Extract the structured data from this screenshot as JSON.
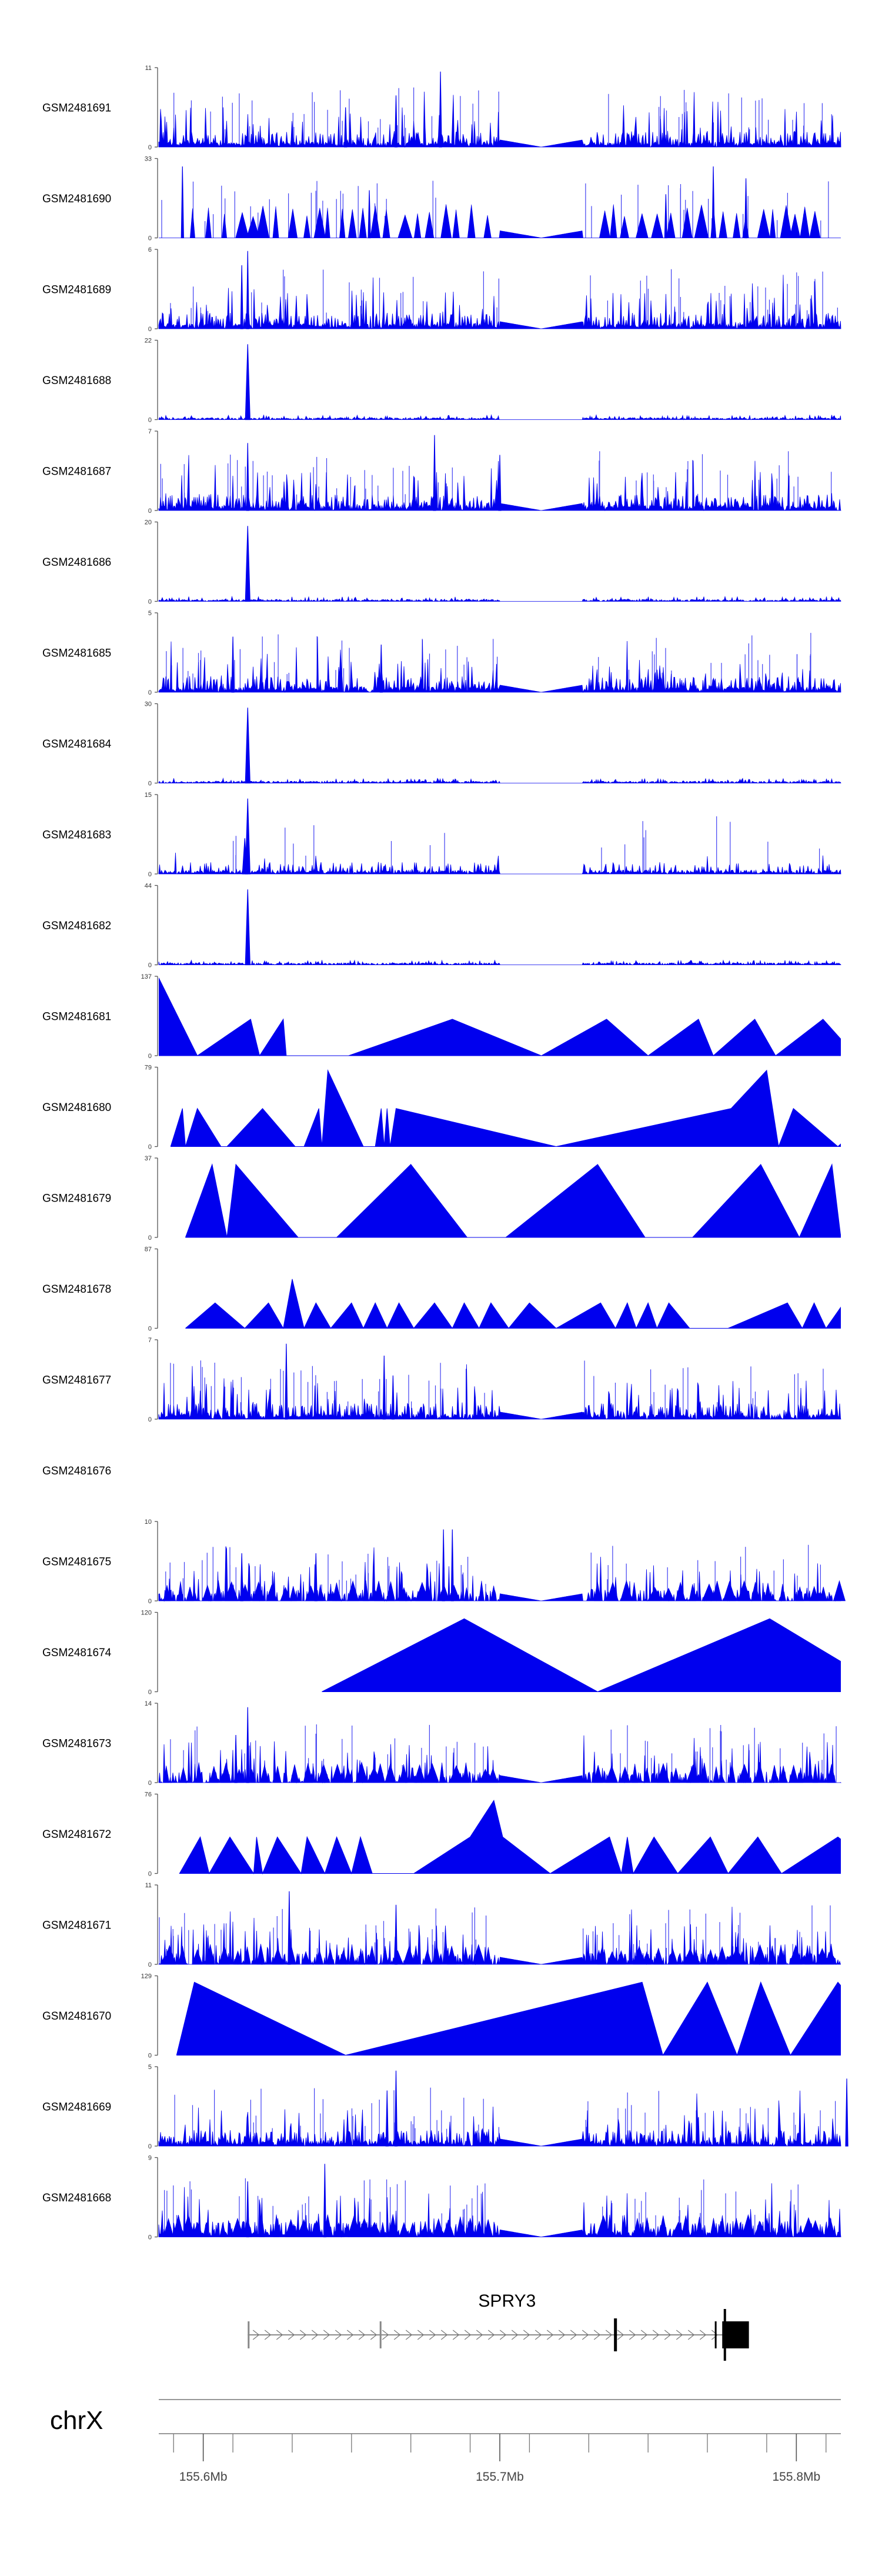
{
  "colors": {
    "track": "#0000ee",
    "axis": "#555555",
    "gene": "#000000",
    "text": "#000000"
  },
  "chart_data": {
    "type": "area",
    "title": "",
    "xlabel": "",
    "ylabel": "",
    "chromosome": "chrX",
    "xlim": [
      155.585,
      155.815
    ],
    "x_ticks": [
      155.6,
      155.7,
      155.8
    ],
    "x_tick_labels": [
      "155.6Mb",
      "155.7Mb",
      "155.8Mb"
    ],
    "gene": {
      "name": "SPRY3",
      "start": 155.615,
      "end": 155.778,
      "strand": "+",
      "exons": [
        {
          "start": 155.615,
          "end": 155.6155
        },
        {
          "start": 155.6595,
          "end": 155.66
        },
        {
          "start": 155.7385,
          "end": 155.7395
        },
        {
          "start": 155.7725,
          "end": 155.773
        },
        {
          "start": 155.775,
          "end": 155.776
        },
        {
          "start": 155.776,
          "end": 155.784
        }
      ]
    },
    "series": [
      {
        "name": "GSM2481691",
        "ymax": 11,
        "profile": "dense",
        "seed": 91,
        "peaks": [
          [
            155.665,
            0.65
          ],
          [
            155.68,
            0.95
          ],
          [
            155.648,
            0.5
          ]
        ]
      },
      {
        "name": "GSM2481690",
        "ymax": 33,
        "profile": "sparse",
        "seed": 90,
        "peaks": [
          [
            155.593,
            0.9
          ],
          [
            155.656,
            0.6
          ],
          [
            155.756,
            0.55
          ],
          [
            155.772,
            0.9
          ],
          [
            155.783,
            0.75
          ]
        ]
      },
      {
        "name": "GSM2481689",
        "ymax": 6,
        "profile": "dense",
        "seed": 89,
        "peaks": [
          [
            155.615,
            0.98
          ],
          [
            155.613,
            0.8
          ]
        ]
      },
      {
        "name": "GSM2481688",
        "ymax": 22,
        "profile": "flat",
        "seed": 88,
        "peaks": [
          [
            155.615,
            0.95
          ]
        ]
      },
      {
        "name": "GSM2481687",
        "ymax": 7,
        "profile": "dense",
        "seed": 87,
        "peaks": [
          [
            155.615,
            0.85
          ],
          [
            155.678,
            0.95
          ],
          [
            155.7,
            0.7
          ]
        ]
      },
      {
        "name": "GSM2481686",
        "ymax": 20,
        "profile": "flat",
        "seed": 86,
        "peaks": [
          [
            155.615,
            0.95
          ]
        ]
      },
      {
        "name": "GSM2481685",
        "ymax": 5,
        "profile": "dense",
        "seed": 85,
        "peaks": [
          [
            155.61,
            0.7
          ],
          [
            155.66,
            0.6
          ]
        ]
      },
      {
        "name": "GSM2481684",
        "ymax": 30,
        "profile": "flat",
        "seed": 84,
        "peaks": [
          [
            155.615,
            0.95
          ]
        ]
      },
      {
        "name": "GSM2481683",
        "ymax": 15,
        "profile": "flat2",
        "seed": 83,
        "peaks": [
          [
            155.615,
            0.95
          ],
          [
            155.614,
            0.45
          ]
        ]
      },
      {
        "name": "GSM2481682",
        "ymax": 44,
        "profile": "flat",
        "seed": 82,
        "peaks": [
          [
            155.615,
            0.95
          ]
        ]
      },
      {
        "name": "GSM2481681",
        "ymax": 137,
        "profile": "points",
        "seed": 81,
        "points": [
          [
            155.585,
            0.98
          ],
          [
            155.598,
            0.0
          ],
          [
            155.616,
            0.46
          ],
          [
            155.619,
            0.0
          ],
          [
            155.627,
            0.46
          ],
          [
            155.628,
            0.0
          ],
          [
            155.649,
            0.0
          ],
          [
            155.684,
            0.46
          ],
          [
            155.714,
            0.0
          ],
          [
            155.736,
            0.46
          ],
          [
            155.75,
            0.0
          ],
          [
            155.767,
            0.46
          ],
          [
            155.772,
            0.0
          ],
          [
            155.786,
            0.46
          ],
          [
            155.793,
            0.0
          ],
          [
            155.809,
            0.46
          ],
          [
            155.82,
            0.0
          ]
        ]
      },
      {
        "name": "GSM2481680",
        "ymax": 79,
        "profile": "points",
        "seed": 80,
        "points": [
          [
            155.589,
            0.0
          ],
          [
            155.593,
            0.48
          ],
          [
            155.594,
            0.0
          ],
          [
            155.598,
            0.48
          ],
          [
            155.606,
            0.0
          ],
          [
            155.608,
            0.0
          ],
          [
            155.62,
            0.48
          ],
          [
            155.631,
            0.0
          ],
          [
            155.634,
            0.0
          ],
          [
            155.639,
            0.48
          ],
          [
            155.64,
            0.0
          ],
          [
            155.642,
            0.96
          ],
          [
            155.654,
            0.0
          ],
          [
            155.658,
            0.0
          ],
          [
            155.66,
            0.48
          ],
          [
            155.661,
            0.0
          ],
          [
            155.662,
            0.48
          ],
          [
            155.663,
            0.0
          ],
          [
            155.665,
            0.48
          ],
          [
            155.719,
            0.0
          ],
          [
            155.778,
            0.48
          ],
          [
            155.79,
            0.96
          ],
          [
            155.794,
            0.0
          ],
          [
            155.799,
            0.48
          ],
          [
            155.814,
            0.0
          ],
          [
            155.828,
            0.48
          ]
        ]
      },
      {
        "name": "GSM2481679",
        "ymax": 37,
        "profile": "points",
        "seed": 79,
        "points": [
          [
            155.594,
            0.0
          ],
          [
            155.603,
            0.92
          ],
          [
            155.608,
            0.0
          ],
          [
            155.611,
            0.92
          ],
          [
            155.632,
            0.0
          ],
          [
            155.645,
            0.0
          ],
          [
            155.67,
            0.92
          ],
          [
            155.689,
            0.0
          ],
          [
            155.702,
            0.0
          ],
          [
            155.733,
            0.92
          ],
          [
            155.749,
            0.0
          ],
          [
            155.765,
            0.0
          ],
          [
            155.788,
            0.92
          ],
          [
            155.801,
            0.0
          ],
          [
            155.812,
            0.92
          ],
          [
            155.815,
            0.0
          ],
          [
            155.817,
            0.92
          ],
          [
            155.848,
            0.0
          ]
        ]
      },
      {
        "name": "GSM2481678",
        "ymax": 87,
        "profile": "points",
        "seed": 78,
        "points": [
          [
            155.594,
            0.0
          ],
          [
            155.604,
            0.32
          ],
          [
            155.614,
            0.0
          ],
          [
            155.622,
            0.32
          ],
          [
            155.627,
            0.0
          ],
          [
            155.63,
            0.62
          ],
          [
            155.634,
            0.0
          ],
          [
            155.638,
            0.32
          ],
          [
            155.643,
            0.0
          ],
          [
            155.65,
            0.32
          ],
          [
            155.654,
            0.0
          ],
          [
            155.658,
            0.32
          ],
          [
            155.662,
            0.0
          ],
          [
            155.666,
            0.32
          ],
          [
            155.671,
            0.0
          ],
          [
            155.678,
            0.32
          ],
          [
            155.684,
            0.0
          ],
          [
            155.688,
            0.32
          ],
          [
            155.693,
            0.0
          ],
          [
            155.697,
            0.32
          ],
          [
            155.703,
            0.0
          ],
          [
            155.71,
            0.32
          ],
          [
            155.719,
            0.0
          ],
          [
            155.734,
            0.32
          ],
          [
            155.739,
            0.0
          ],
          [
            155.743,
            0.32
          ],
          [
            155.746,
            0.0
          ],
          [
            155.75,
            0.32
          ],
          [
            155.753,
            0.0
          ],
          [
            155.757,
            0.32
          ],
          [
            155.764,
            0.0
          ],
          [
            155.777,
            0.0
          ],
          [
            155.797,
            0.32
          ],
          [
            155.802,
            0.0
          ],
          [
            155.806,
            0.32
          ],
          [
            155.81,
            0.0
          ],
          [
            155.816,
            0.32
          ],
          [
            155.822,
            0.88
          ],
          [
            155.833,
            0.0
          ]
        ]
      },
      {
        "name": "GSM2481677",
        "ymax": 7,
        "profile": "dense",
        "seed": 77,
        "peaks": [
          [
            155.628,
            0.95
          ],
          [
            155.661,
            0.8
          ],
          [
            155.664,
            0.55
          ]
        ]
      },
      {
        "name": "GSM2481676",
        "ymax": null,
        "profile": "empty",
        "seed": 76
      },
      {
        "name": "GSM2481675",
        "ymax": 10,
        "profile": "sparse_dense",
        "seed": 75,
        "peaks": [
          [
            155.681,
            0.9
          ],
          [
            155.684,
            0.9
          ],
          [
            155.638,
            0.6
          ],
          [
            155.613,
            0.6
          ]
        ]
      },
      {
        "name": "GSM2481674",
        "ymax": 120,
        "profile": "points",
        "seed": 74,
        "points": [
          [
            155.64,
            0.0
          ],
          [
            155.688,
            0.92
          ],
          [
            155.733,
            0.0
          ],
          [
            155.791,
            0.92
          ],
          [
            155.832,
            0.0
          ]
        ]
      },
      {
        "name": "GSM2481673",
        "ymax": 14,
        "profile": "sparse_dense",
        "seed": 73,
        "peaks": [
          [
            155.615,
            0.95
          ],
          [
            155.611,
            0.6
          ]
        ]
      },
      {
        "name": "GSM2481672",
        "ymax": 76,
        "profile": "points",
        "seed": 72,
        "points": [
          [
            155.592,
            0.0
          ],
          [
            155.599,
            0.46
          ],
          [
            155.602,
            0.0
          ],
          [
            155.609,
            0.46
          ],
          [
            155.617,
            0.0
          ],
          [
            155.618,
            0.46
          ],
          [
            155.62,
            0.0
          ],
          [
            155.625,
            0.46
          ],
          [
            155.633,
            0.0
          ],
          [
            155.635,
            0.46
          ],
          [
            155.641,
            0.0
          ],
          [
            155.645,
            0.46
          ],
          [
            155.65,
            0.0
          ],
          [
            155.653,
            0.46
          ],
          [
            155.657,
            0.0
          ],
          [
            155.671,
            0.0
          ],
          [
            155.69,
            0.46
          ],
          [
            155.698,
            0.92
          ],
          [
            155.701,
            0.46
          ],
          [
            155.717,
            0.0
          ],
          [
            155.737,
            0.46
          ],
          [
            155.741,
            0.0
          ],
          [
            155.743,
            0.46
          ],
          [
            155.745,
            0.0
          ],
          [
            155.752,
            0.46
          ],
          [
            155.76,
            0.0
          ],
          [
            155.771,
            0.46
          ],
          [
            155.777,
            0.0
          ],
          [
            155.787,
            0.46
          ],
          [
            155.795,
            0.0
          ],
          [
            155.814,
            0.46
          ],
          [
            155.83,
            0.0
          ]
        ]
      },
      {
        "name": "GSM2481671",
        "ymax": 11,
        "profile": "sparse_dense",
        "seed": 71,
        "peaks": [
          [
            155.629,
            0.92
          ],
          [
            155.665,
            0.75
          ]
        ]
      },
      {
        "name": "GSM2481670",
        "ymax": 129,
        "profile": "points",
        "seed": 70,
        "points": [
          [
            155.591,
            0.0
          ],
          [
            155.597,
            0.92
          ],
          [
            155.648,
            0.0
          ],
          [
            155.748,
            0.92
          ],
          [
            155.755,
            0.0
          ],
          [
            155.77,
            0.92
          ],
          [
            155.78,
            0.0
          ],
          [
            155.788,
            0.92
          ],
          [
            155.798,
            0.0
          ],
          [
            155.814,
            0.92
          ],
          [
            155.835,
            0.0
          ]
        ]
      },
      {
        "name": "GSM2481669",
        "ymax": 5,
        "profile": "dense",
        "seed": 69,
        "peaks": [
          [
            155.665,
            0.95
          ],
          [
            155.662,
            0.7
          ],
          [
            155.817,
            0.85
          ]
        ]
      },
      {
        "name": "GSM2481668",
        "ymax": 9,
        "profile": "dense_tri",
        "seed": 68,
        "peaks": [
          [
            155.641,
            0.92
          ],
          [
            155.615,
            0.7
          ]
        ]
      }
    ]
  }
}
